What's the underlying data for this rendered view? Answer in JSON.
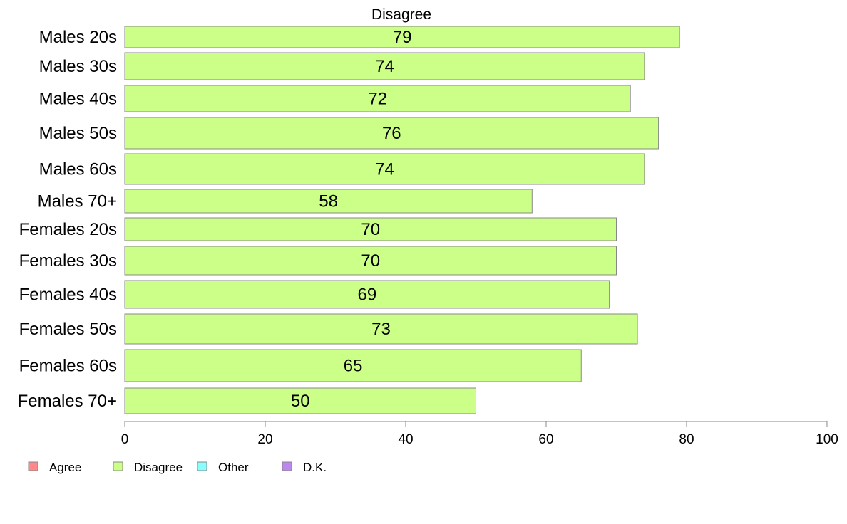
{
  "chart_data": {
    "type": "bar",
    "orientation": "horizontal",
    "title": "Disagree",
    "xlabel": "",
    "ylabel": "",
    "xlim": [
      0,
      100
    ],
    "xticks": [
      0,
      20,
      40,
      60,
      80,
      100
    ],
    "categories": [
      "Males 20s",
      "Males 30s",
      "Males 40s",
      "Males 50s",
      "Males 60s",
      "Males 70+",
      "Females 20s",
      "Females 30s",
      "Females 40s",
      "Females 50s",
      "Females 60s",
      "Females 70+"
    ],
    "series": [
      {
        "name": "Disagree",
        "color": "#ccff88",
        "values": [
          79,
          74,
          72,
          76,
          74,
          58,
          70,
          70,
          69,
          73,
          65,
          50
        ]
      }
    ],
    "data_labels": [
      "79",
      "74",
      "72",
      "76",
      "74",
      "58",
      "70",
      "70",
      "69",
      "73",
      "65",
      "50"
    ],
    "legend": {
      "placement": "bottom-left",
      "items": [
        {
          "label": "Agree",
          "color": "#ff8888"
        },
        {
          "label": "Disagree",
          "color": "#ccff88"
        },
        {
          "label": "Other",
          "color": "#88ffff"
        },
        {
          "label": "D.K.",
          "color": "#bb88ee"
        }
      ]
    },
    "grid": false
  }
}
